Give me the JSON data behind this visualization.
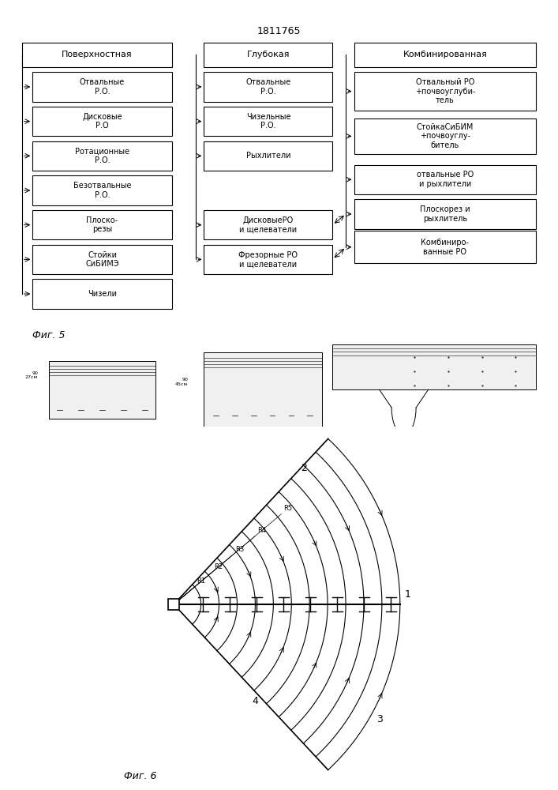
{
  "title": "1811765",
  "fig5_label": "Фиг. 5",
  "fig6_label": "Фиг. 6",
  "col1_header": "Поверхностная",
  "col2_header": "Глубокая",
  "col3_header": "Комбинированная",
  "col1_boxes": [
    "Отвальные\nР.О.",
    "Дисковые\nР.О",
    "Ротационные\nР.О.",
    "Безотвальные\nР.О.",
    "Плоско-\nрезы",
    "Стойки\nСиБИМЭ",
    "Чизели"
  ],
  "col2_boxes": [
    "Отвальные\nР.О.",
    "Чизельные\nР.О.",
    "Рыхлители",
    "ДисковыеРО\nи щелеватели",
    "Фрезорные РО\nи щелеватели"
  ],
  "col3_boxes": [
    "Отвальный РО\n+почвоуглуби-\nтель",
    "СтойкаСиБИМ\n+почвоуглу-\nбитель",
    "отвальные РО\nи рыхлители",
    "Плоскорез и\nрыхлитель",
    "Комбиниро-\nванные РО"
  ],
  "bg_color": "#ffffff",
  "font_size": 7,
  "radii_labels": [
    "R1",
    "R2",
    "R3",
    "R4",
    "R5"
  ],
  "arc_labels": [
    "1",
    "2",
    "3",
    "4"
  ]
}
